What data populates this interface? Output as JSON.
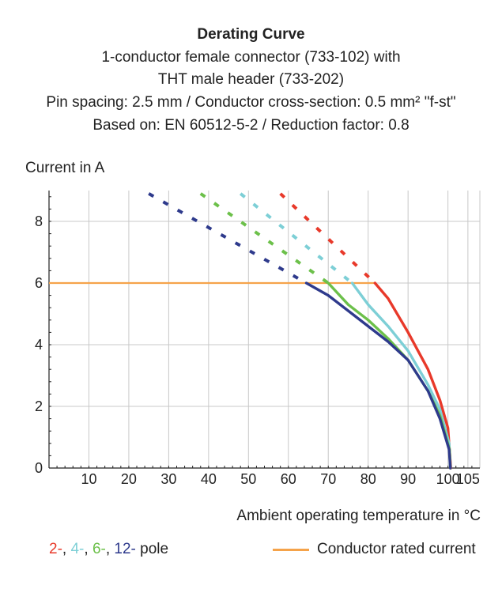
{
  "header": {
    "title": "Derating Curve",
    "lines": [
      "1-conductor female connector (733-102) with",
      "THT male header (733-202)",
      "Pin spacing: 2.5 mm / Conductor cross-section: 0.5 mm² \"f-st\"",
      "Based on: EN 60512-5-2 / Reduction factor: 0.8"
    ]
  },
  "legend": {
    "poles": [
      {
        "text": "2-",
        "color": "#e8392a"
      },
      {
        "text": ", ",
        "color": "#222222"
      },
      {
        "text": "4-",
        "color": "#7dcfd6"
      },
      {
        "text": ", ",
        "color": "#222222"
      },
      {
        "text": "6-",
        "color": "#6cc04a"
      },
      {
        "text": ", ",
        "color": "#222222"
      },
      {
        "text": "12-",
        "color": "#2e3a8c"
      },
      {
        "text": " pole",
        "color": "#222222"
      }
    ],
    "rated_label": "Conductor rated current",
    "rated_color": "#f5a34a"
  },
  "chart_data": {
    "type": "line",
    "xlabel": "Ambient operating temperature in °C",
    "ylabel": "Current in A",
    "xlim": [
      0,
      108
    ],
    "ylim": [
      0,
      9
    ],
    "x_ticks": [
      10,
      20,
      30,
      40,
      50,
      60,
      70,
      80,
      90,
      100,
      105
    ],
    "y_ticks": [
      0,
      2,
      4,
      6,
      8
    ],
    "grid": true,
    "rated_current": {
      "value": 6,
      "color": "#f5a34a"
    },
    "series": [
      {
        "pole": "2-",
        "color": "#e8392a",
        "dashed": [
          [
            58,
            8.9
          ],
          [
            81.7,
            6
          ]
        ],
        "solid": [
          [
            81.7,
            6
          ],
          [
            85,
            5.5
          ],
          [
            90,
            4.4
          ],
          [
            95,
            3.2
          ],
          [
            98,
            2.2
          ],
          [
            100,
            1.3
          ],
          [
            100.7,
            0
          ]
        ]
      },
      {
        "pole": "4-",
        "color": "#7dcfd6",
        "dashed": [
          [
            48,
            8.9
          ],
          [
            76,
            6
          ]
        ],
        "solid": [
          [
            76,
            6
          ],
          [
            80,
            5.3
          ],
          [
            85,
            4.6
          ],
          [
            90,
            3.8
          ],
          [
            95,
            2.7
          ],
          [
            98,
            1.9
          ],
          [
            100.3,
            0.8
          ],
          [
            100.6,
            0
          ]
        ]
      },
      {
        "pole": "6-",
        "color": "#6cc04a",
        "dashed": [
          [
            38,
            8.9
          ],
          [
            70,
            6
          ]
        ],
        "solid": [
          [
            70,
            6
          ],
          [
            75,
            5.3
          ],
          [
            80,
            4.8
          ],
          [
            85,
            4.2
          ],
          [
            90,
            3.5
          ],
          [
            95,
            2.5
          ],
          [
            98,
            1.7
          ],
          [
            100.4,
            0.6
          ],
          [
            100.6,
            0
          ]
        ]
      },
      {
        "pole": "12-",
        "color": "#2e3a8c",
        "dashed": [
          [
            25,
            8.9
          ],
          [
            64.5,
            6
          ]
        ],
        "solid": [
          [
            64.5,
            6
          ],
          [
            70,
            5.6
          ],
          [
            75,
            5.1
          ],
          [
            80,
            4.6
          ],
          [
            85,
            4.1
          ],
          [
            90,
            3.5
          ],
          [
            95,
            2.5
          ],
          [
            98,
            1.6
          ],
          [
            100.3,
            0.6
          ],
          [
            100.6,
            0
          ]
        ]
      }
    ]
  }
}
